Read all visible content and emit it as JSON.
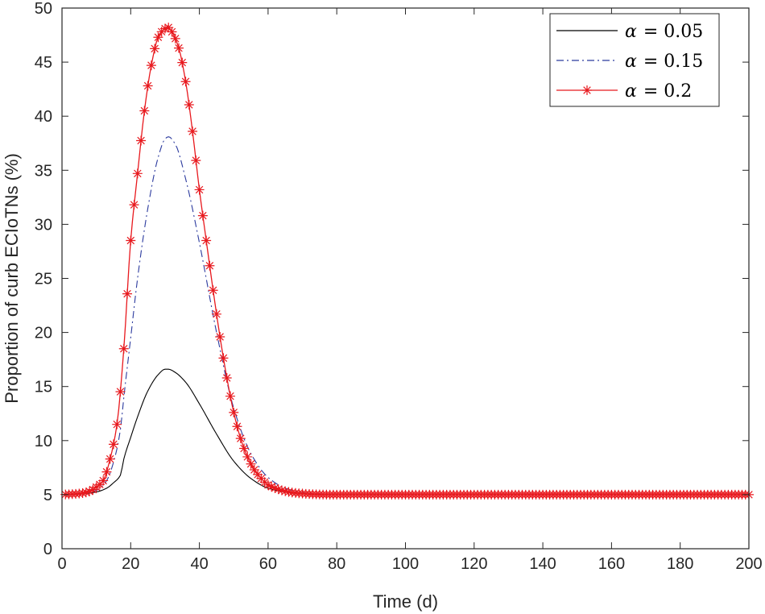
{
  "chart_data": {
    "type": "line",
    "xlabel": "Time (d)",
    "ylabel": "Proportion of curb ECIoTNs (%)",
    "xlim": [
      0,
      200
    ],
    "ylim": [
      0,
      50
    ],
    "xticks": [
      0,
      20,
      40,
      60,
      80,
      100,
      120,
      140,
      160,
      180,
      200
    ],
    "yticks": [
      0,
      5,
      10,
      15,
      20,
      25,
      30,
      35,
      40,
      45,
      50
    ],
    "grid": false,
    "legend_position": "top-right",
    "baseline": 5,
    "series": [
      {
        "name": "α = 0.05",
        "legend_symbol": "α",
        "legend_value": "= 0.05",
        "color": "#000000",
        "line_style": "solid",
        "marker": "none",
        "x": [
          0,
          5,
          10,
          13,
          15,
          17,
          18,
          20,
          22,
          25,
          28,
          30,
          31,
          33,
          36,
          40,
          45,
          50,
          55,
          60,
          65,
          70,
          75,
          80,
          100,
          150,
          200
        ],
        "values": [
          5,
          5.05,
          5.25,
          5.6,
          6.1,
          6.8,
          8.3,
          10.3,
          12.2,
          14.6,
          16.1,
          16.6,
          16.6,
          16.3,
          15.4,
          13.4,
          10.6,
          8.1,
          6.5,
          5.6,
          5.25,
          5.1,
          5.03,
          5,
          5,
          5,
          5
        ]
      },
      {
        "name": "α = 0.15",
        "legend_symbol": "α",
        "legend_value": "= 0.15",
        "color": "#2b3a9e",
        "line_style": "dash-dot",
        "marker": "none",
        "x": [
          0,
          5,
          10,
          13,
          15,
          17,
          18,
          20,
          22,
          25,
          28,
          30,
          31,
          33,
          36,
          40,
          45,
          50,
          55,
          60,
          65,
          70,
          75,
          80,
          100,
          150,
          200
        ],
        "values": [
          5,
          5.05,
          5.4,
          6.3,
          8,
          11,
          14,
          19.5,
          25,
          31.5,
          36.2,
          37.9,
          38.1,
          37.4,
          34.2,
          28.3,
          20,
          13,
          8.8,
          6.6,
          5.6,
          5.2,
          5.05,
          5,
          5,
          5,
          5
        ]
      },
      {
        "name": "α = 0.2",
        "legend_symbol": "α",
        "legend_value": "= 0.2",
        "color": "#e8191e",
        "line_style": "solid",
        "marker": "asterisk",
        "x": [
          0,
          5,
          8,
          10,
          12,
          14,
          16,
          18,
          20,
          22,
          24,
          26,
          28,
          30,
          31,
          32,
          34,
          36,
          38,
          40,
          42,
          44,
          46,
          48,
          50,
          52,
          54,
          56,
          58,
          60,
          63,
          66,
          70,
          75,
          80,
          100,
          150,
          200
        ],
        "values": [
          5,
          5.1,
          5.3,
          5.7,
          6.3,
          8.3,
          11.5,
          18.5,
          28.5,
          34.7,
          40.5,
          44.7,
          47.3,
          48.1,
          48.2,
          47.8,
          46.3,
          43.2,
          38.6,
          33.2,
          28.5,
          23.9,
          19.6,
          15.8,
          12.6,
          10.2,
          8.5,
          7.3,
          6.5,
          5.9,
          5.5,
          5.25,
          5.1,
          5.02,
          5,
          5,
          5,
          5
        ]
      }
    ]
  }
}
